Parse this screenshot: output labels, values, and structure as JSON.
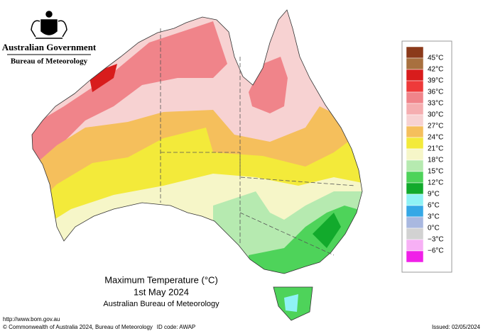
{
  "header": {
    "government": "Australian Government",
    "agency": "Bureau of Meteorology"
  },
  "map": {
    "title": "Maximum Temperature (°C)",
    "date": "1st May 2024",
    "source": "Australian Bureau of Meteorology"
  },
  "legend": {
    "labels": [
      "45°C",
      "42°C",
      "39°C",
      "36°C",
      "33°C",
      "30°C",
      "27°C",
      "24°C",
      "21°C",
      "18°C",
      "15°C",
      "12°C",
      "9°C",
      "6°C",
      "3°C",
      "0°C",
      "−3°C",
      "−6°C"
    ],
    "colors": [
      "#8b3a1a",
      "#a8703f",
      "#d81c1c",
      "#ee3a3a",
      "#f0848a",
      "#f5aeb0",
      "#f7d2d2",
      "#f5bf5c",
      "#f3ea3a",
      "#f6f6c8",
      "#b6eab0",
      "#4ed35a",
      "#12aa2c",
      "#8ff2f5",
      "#35a8e6",
      "#a9b8e0",
      "#d2d2d2",
      "#f7b0f5",
      "#f020e8"
    ]
  },
  "footer": {
    "url": "http://www.bom.gov.au",
    "copyright": "© Commonwealth of Australia 2024, Bureau of Meteorology",
    "id_code": "ID code: AWAP",
    "issued": "Issued: 02/05/2024"
  }
}
